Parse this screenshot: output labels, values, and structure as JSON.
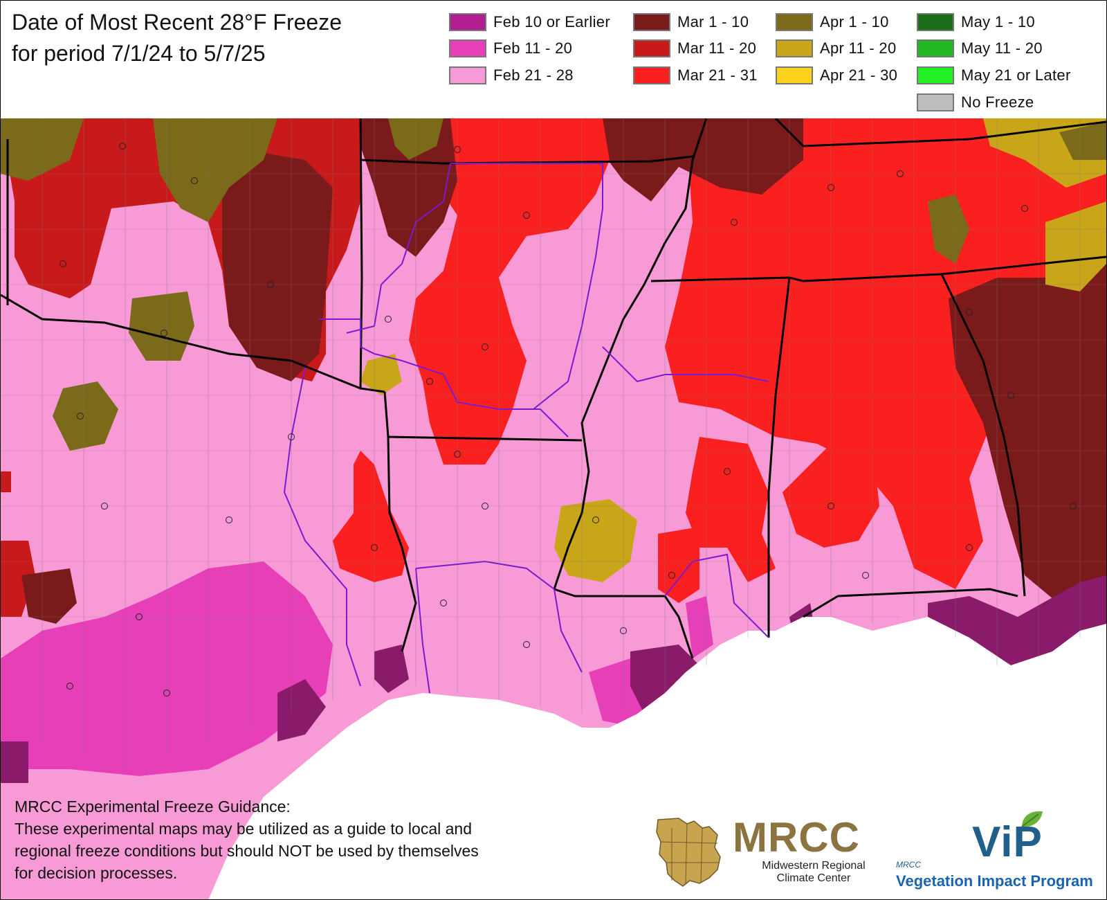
{
  "title": {
    "line1": "Date of Most Recent 28°F Freeze",
    "line2": "for period 7/1/24 to 5/7/25"
  },
  "legend": [
    {
      "label": "Feb 10 or Earlier",
      "color": "#b01e8f"
    },
    {
      "label": "Feb 11 - 20",
      "color": "#e63fb8"
    },
    {
      "label": "Feb 21 - 28",
      "color": "#f79ad6"
    },
    {
      "label": "Mar 1 - 10",
      "color": "#7a1a1a"
    },
    {
      "label": "Mar 11 - 20",
      "color": "#c81a1a"
    },
    {
      "label": "Mar 21 - 31",
      "color": "#fb2020"
    },
    {
      "label": "Apr 1 - 10",
      "color": "#7b6a1a"
    },
    {
      "label": "Apr 11 - 20",
      "color": "#c9a51a"
    },
    {
      "label": "Apr 21 - 30",
      "color": "#fdd21f"
    },
    {
      "label": "May 1 - 10",
      "color": "#1a6e1a"
    },
    {
      "label": "May 11 - 20",
      "color": "#22b822"
    },
    {
      "label": "May 21 or Later",
      "color": "#22f022"
    },
    {
      "label": "No Freeze",
      "color": "#bdbdbd"
    }
  ],
  "disclaimer": {
    "heading": "MRCC Experimental Freeze Guidance:",
    "line1": "These experimental maps may be utilized as a guide to local and",
    "line2": "regional freeze conditions but should NOT be used by themselves",
    "line3": "for decision processes."
  },
  "logos": {
    "mrcc_name": "MRCC",
    "mrcc_full_line1": "Midwestern Regional",
    "mrcc_full_line2": "Climate Center",
    "vip_name": "ViP",
    "vip_small": "MRCC",
    "vip_full": "Vegetation Impact Program"
  }
}
